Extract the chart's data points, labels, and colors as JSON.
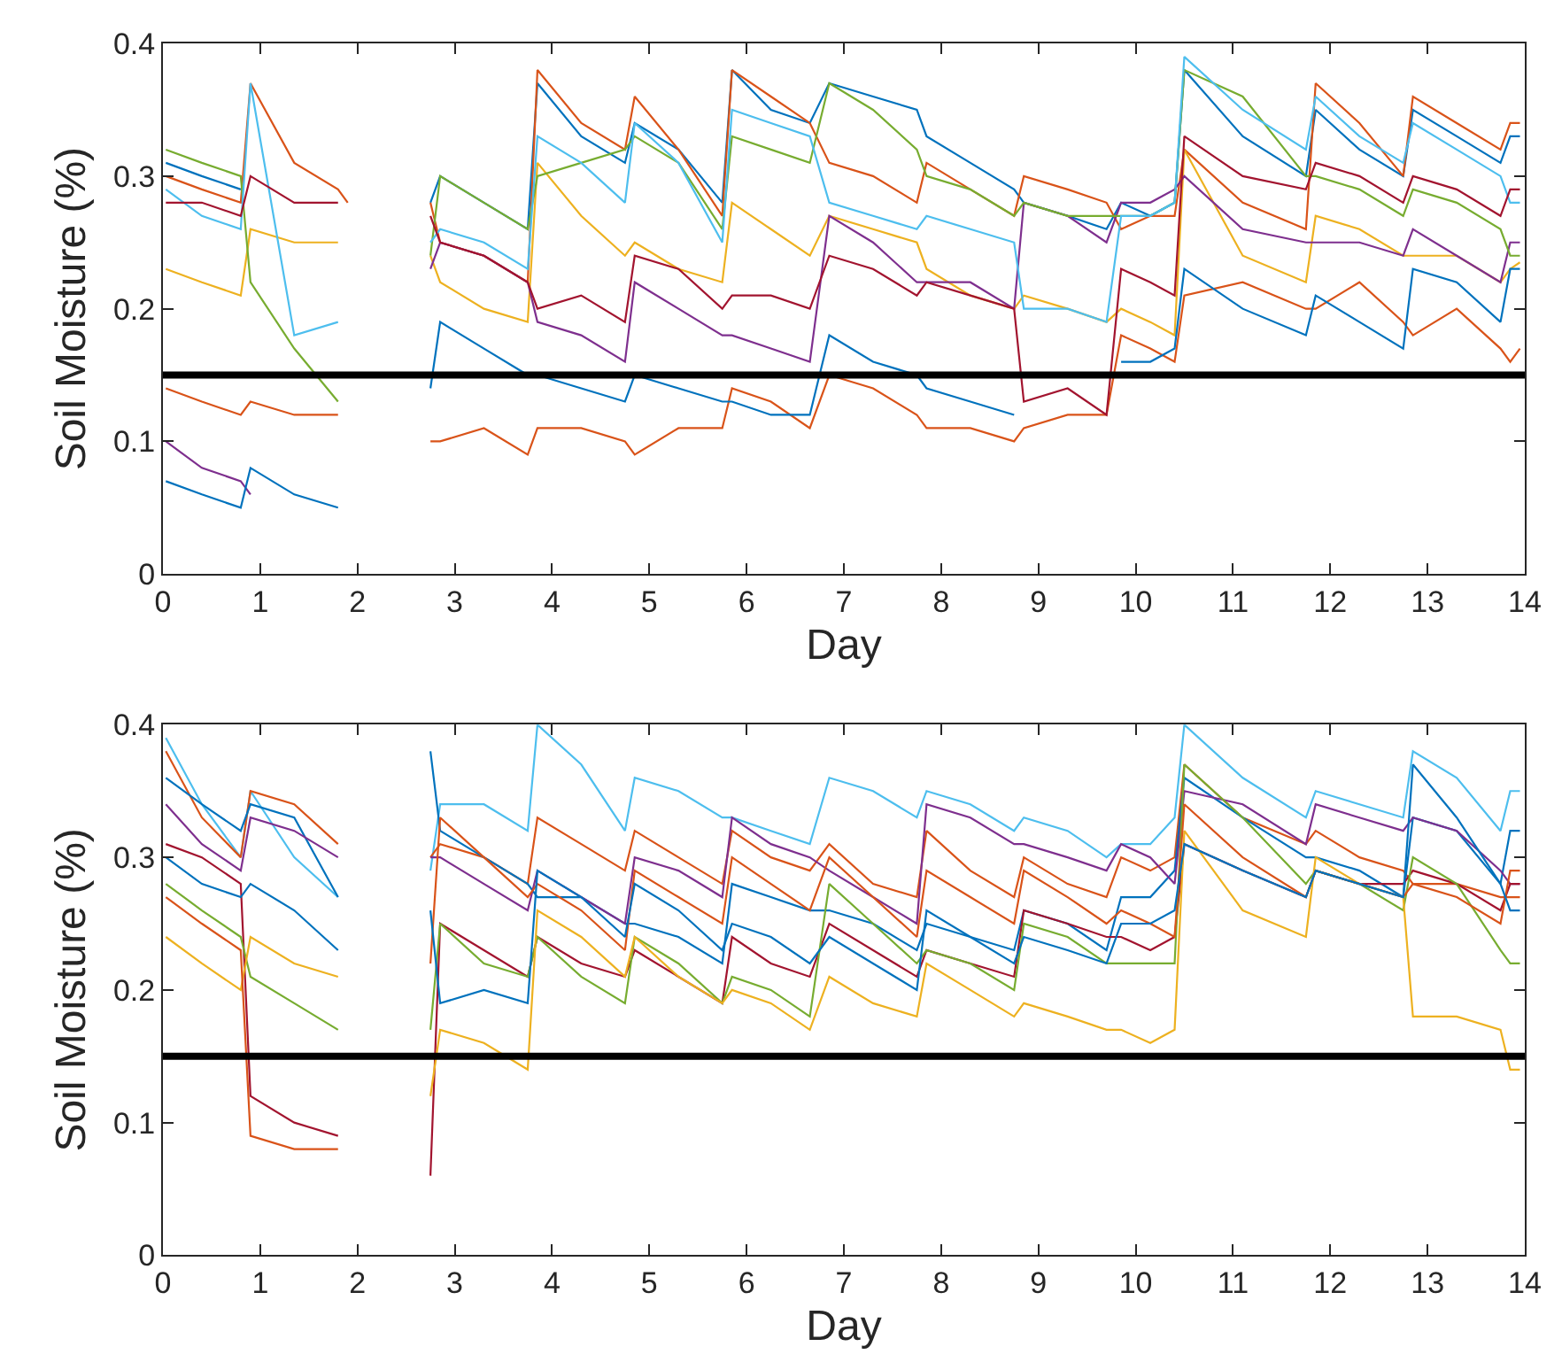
{
  "chart_data": [
    {
      "type": "line",
      "xlabel": "Day",
      "ylabel": "Soil Moisture (%)",
      "xlim": [
        0,
        14
      ],
      "xticks": [
        0,
        1,
        2,
        3,
        4,
        5,
        6,
        7,
        8,
        9,
        10,
        11,
        12,
        13,
        14
      ],
      "ylim": [
        0,
        0.4
      ],
      "yticks": [
        0,
        0.1,
        0.2,
        0.3,
        0.4
      ],
      "marker": "none",
      "line_style": "solid",
      "x": [
        0.03,
        0.4,
        0.8,
        0.9,
        1.35,
        1.8,
        1.9,
        2.3,
        2.75,
        2.85,
        3.3,
        3.75,
        3.85,
        4.3,
        4.75,
        4.85,
        5.3,
        5.75,
        5.85,
        6.25,
        6.65,
        6.85,
        7.3,
        7.75,
        7.85,
        8.3,
        8.75,
        8.85,
        9.3,
        9.7,
        9.85,
        10.15,
        10.4,
        10.5,
        11.1,
        11.75,
        11.85,
        12.3,
        12.75,
        12.85,
        13.3,
        13.75,
        13.85,
        13.95
      ],
      "ref_lines": [
        {
          "axis": "y",
          "value": 0.15,
          "color": "#000000"
        }
      ],
      "series": [
        {
          "color": "#0072bd",
          "values": [
            0.31,
            0.3,
            0.29,
            null,
            null,
            null,
            null,
            null,
            0.28,
            0.3,
            0.28,
            0.26,
            0.37,
            0.33,
            0.31,
            0.34,
            0.32,
            0.28,
            0.38,
            0.35,
            0.34,
            0.37,
            0.36,
            0.35,
            0.33,
            0.31,
            0.29,
            0.28,
            0.27,
            0.26,
            0.28,
            0.27,
            0.28,
            0.38,
            0.33,
            0.3,
            0.35,
            0.32,
            0.3,
            0.35,
            0.33,
            0.31,
            0.33,
            0.33
          ]
        },
        {
          "color": "#d95319",
          "values": [
            0.3,
            0.29,
            0.28,
            0.37,
            0.31,
            0.29,
            0.28,
            null,
            0.28,
            0.25,
            0.24,
            0.22,
            0.38,
            0.34,
            0.32,
            0.36,
            0.32,
            0.27,
            0.38,
            0.36,
            0.34,
            0.31,
            0.3,
            0.28,
            0.31,
            0.29,
            0.27,
            0.3,
            0.29,
            0.28,
            0.26,
            0.27,
            0.27,
            0.32,
            0.28,
            0.26,
            0.37,
            0.34,
            0.3,
            0.36,
            0.34,
            0.32,
            0.34,
            0.34
          ]
        },
        {
          "color": "#d95319",
          "values": [
            0.14,
            0.13,
            0.12,
            0.13,
            0.12,
            0.12,
            null,
            null,
            0.1,
            0.1,
            0.11,
            0.09,
            0.11,
            0.11,
            0.1,
            0.09,
            0.11,
            0.11,
            0.14,
            0.13,
            0.11,
            0.15,
            0.14,
            0.12,
            0.11,
            0.11,
            0.1,
            0.11,
            0.12,
            0.12,
            0.18,
            0.17,
            0.16,
            0.21,
            0.22,
            0.2,
            0.2,
            0.22,
            0.19,
            0.18,
            0.2,
            0.17,
            0.16,
            0.17
          ]
        },
        {
          "color": "#edb120",
          "values": [
            0.23,
            0.22,
            0.21,
            0.26,
            0.25,
            0.25,
            null,
            null,
            0.24,
            0.22,
            0.2,
            0.19,
            0.31,
            0.27,
            0.24,
            0.25,
            0.23,
            0.22,
            0.28,
            0.26,
            0.24,
            0.27,
            0.26,
            0.25,
            0.23,
            0.21,
            0.2,
            0.21,
            0.2,
            0.19,
            0.2,
            0.19,
            0.18,
            0.32,
            0.24,
            0.22,
            0.27,
            0.26,
            0.24,
            0.24,
            0.24,
            0.22,
            0.23,
            0.235
          ]
        },
        {
          "color": "#7e2f8e",
          "values": [
            0.1,
            0.08,
            0.07,
            0.06,
            null,
            null,
            null,
            null,
            0.23,
            0.25,
            0.24,
            0.22,
            0.19,
            0.18,
            0.16,
            0.22,
            0.2,
            0.18,
            0.18,
            0.17,
            0.16,
            0.27,
            0.25,
            0.22,
            0.22,
            0.22,
            0.2,
            0.28,
            0.27,
            0.25,
            0.28,
            0.28,
            0.29,
            0.3,
            0.26,
            0.25,
            0.25,
            0.25,
            0.24,
            0.26,
            0.24,
            0.22,
            0.25,
            0.25
          ]
        },
        {
          "color": "#77ac30",
          "values": [
            0.32,
            0.31,
            0.3,
            0.22,
            0.17,
            0.13,
            null,
            null,
            0.24,
            0.3,
            0.28,
            0.26,
            0.3,
            0.31,
            0.32,
            0.33,
            0.31,
            0.26,
            0.33,
            0.32,
            0.31,
            0.37,
            0.35,
            0.32,
            0.3,
            0.29,
            0.27,
            0.28,
            0.27,
            0.27,
            0.27,
            0.27,
            0.28,
            0.38,
            0.36,
            0.3,
            0.3,
            0.29,
            0.27,
            0.29,
            0.28,
            0.26,
            0.24,
            0.24
          ]
        },
        {
          "color": "#4dbeee",
          "values": [
            0.29,
            0.27,
            0.26,
            0.37,
            0.18,
            0.19,
            null,
            null,
            0.25,
            0.26,
            0.25,
            0.23,
            0.33,
            0.31,
            0.28,
            0.34,
            0.31,
            0.25,
            0.35,
            0.34,
            0.33,
            0.28,
            0.27,
            0.26,
            0.27,
            0.26,
            0.25,
            0.2,
            0.2,
            0.19,
            0.27,
            0.27,
            0.28,
            0.39,
            0.35,
            0.32,
            0.36,
            0.33,
            0.31,
            0.34,
            0.32,
            0.3,
            0.28,
            0.28
          ]
        },
        {
          "color": "#a2142f",
          "values": [
            0.28,
            0.28,
            0.27,
            0.3,
            0.28,
            0.28,
            null,
            null,
            0.27,
            0.25,
            0.24,
            0.22,
            0.2,
            0.21,
            0.19,
            0.24,
            0.23,
            0.2,
            0.21,
            0.21,
            0.2,
            0.24,
            0.23,
            0.21,
            0.22,
            0.21,
            0.2,
            0.13,
            0.14,
            0.12,
            0.23,
            0.22,
            0.21,
            0.33,
            0.3,
            0.29,
            0.31,
            0.3,
            0.28,
            0.3,
            0.29,
            0.27,
            0.29,
            0.29
          ]
        },
        {
          "color": "#0072bd",
          "values": [
            0.07,
            0.06,
            0.05,
            0.08,
            0.06,
            0.05,
            null,
            null,
            0.14,
            0.19,
            0.17,
            0.15,
            0.15,
            0.14,
            0.13,
            0.15,
            0.14,
            0.13,
            0.13,
            0.12,
            0.12,
            0.18,
            0.16,
            0.15,
            0.14,
            0.13,
            0.12,
            null,
            null,
            null,
            0.16,
            0.16,
            0.17,
            0.23,
            0.2,
            0.18,
            0.21,
            0.19,
            0.17,
            0.23,
            0.22,
            0.19,
            0.23,
            0.23
          ]
        }
      ]
    },
    {
      "type": "line",
      "xlabel": "Day",
      "ylabel": "Soil Moisture (%)",
      "xlim": [
        0,
        14
      ],
      "xticks": [
        0,
        1,
        2,
        3,
        4,
        5,
        6,
        7,
        8,
        9,
        10,
        11,
        12,
        13,
        14
      ],
      "ylim": [
        0,
        0.4
      ],
      "yticks": [
        0,
        0.1,
        0.2,
        0.3,
        0.4
      ],
      "marker": "none",
      "line_style": "solid",
      "x": [
        0.03,
        0.4,
        0.8,
        0.9,
        1.35,
        1.8,
        1.9,
        2.3,
        2.75,
        2.85,
        3.3,
        3.75,
        3.85,
        4.3,
        4.75,
        4.85,
        5.3,
        5.75,
        5.85,
        6.25,
        6.65,
        6.85,
        7.3,
        7.75,
        7.85,
        8.3,
        8.75,
        8.85,
        9.3,
        9.7,
        9.85,
        10.15,
        10.4,
        10.5,
        11.1,
        11.75,
        11.85,
        12.3,
        12.75,
        12.85,
        13.3,
        13.75,
        13.85,
        13.95
      ],
      "ref_lines": [
        {
          "axis": "y",
          "value": 0.15,
          "color": "#000000"
        }
      ],
      "series": [
        {
          "color": "#4dbeee",
          "values": [
            0.39,
            0.34,
            0.3,
            0.35,
            0.3,
            0.27,
            null,
            null,
            0.29,
            0.34,
            0.34,
            0.32,
            0.4,
            0.37,
            0.32,
            0.36,
            0.35,
            0.33,
            0.33,
            0.32,
            0.31,
            0.36,
            0.35,
            0.33,
            0.35,
            0.34,
            0.32,
            0.33,
            0.32,
            0.3,
            0.31,
            0.31,
            0.33,
            0.4,
            0.36,
            0.33,
            0.35,
            0.34,
            0.33,
            0.38,
            0.36,
            0.32,
            0.35,
            0.35
          ]
        },
        {
          "color": "#d95319",
          "values": [
            0.38,
            0.33,
            0.3,
            0.35,
            0.34,
            0.31,
            null,
            null,
            0.3,
            0.31,
            0.3,
            0.28,
            0.33,
            0.31,
            0.29,
            0.32,
            0.3,
            0.28,
            0.32,
            0.3,
            0.29,
            0.31,
            0.28,
            0.27,
            0.32,
            0.29,
            0.27,
            0.3,
            0.28,
            0.27,
            0.3,
            0.29,
            0.3,
            0.37,
            0.33,
            0.31,
            0.32,
            0.3,
            0.29,
            0.28,
            0.28,
            0.27,
            0.27,
            0.27
          ]
        },
        {
          "color": "#0072bd",
          "values": [
            0.36,
            0.34,
            0.32,
            0.34,
            0.33,
            0.27,
            null,
            null,
            0.38,
            0.32,
            0.3,
            0.28,
            0.27,
            0.27,
            0.25,
            0.25,
            0.24,
            0.22,
            0.28,
            0.27,
            0.26,
            0.26,
            0.25,
            0.23,
            0.25,
            0.24,
            0.23,
            0.26,
            0.25,
            0.23,
            0.27,
            0.27,
            0.29,
            0.36,
            0.33,
            0.3,
            0.3,
            0.29,
            0.27,
            0.33,
            0.32,
            0.28,
            0.32,
            0.32
          ]
        },
        {
          "color": "#7e2f8e",
          "values": [
            0.34,
            0.31,
            0.29,
            0.33,
            0.32,
            0.3,
            null,
            null,
            0.3,
            0.3,
            0.28,
            0.26,
            0.29,
            0.27,
            0.25,
            0.3,
            0.29,
            0.27,
            0.33,
            0.31,
            0.3,
            0.29,
            0.27,
            0.25,
            0.34,
            0.33,
            0.31,
            0.31,
            0.3,
            0.29,
            0.31,
            0.3,
            0.28,
            0.35,
            0.34,
            0.31,
            0.34,
            0.33,
            0.32,
            0.33,
            0.32,
            0.29,
            0.28,
            0.28
          ]
        },
        {
          "color": "#a2142f",
          "values": [
            0.31,
            0.3,
            0.28,
            0.12,
            0.1,
            0.09,
            null,
            null,
            0.06,
            0.25,
            0.23,
            0.21,
            0.24,
            0.22,
            0.21,
            0.23,
            0.21,
            0.19,
            0.24,
            0.22,
            0.21,
            0.25,
            0.23,
            0.21,
            0.23,
            0.22,
            0.21,
            0.26,
            0.25,
            0.24,
            0.24,
            0.23,
            0.24,
            0.31,
            0.29,
            0.27,
            0.29,
            0.28,
            0.28,
            0.29,
            0.28,
            0.26,
            0.28,
            0.28
          ]
        },
        {
          "color": "#77ac30",
          "values": [
            0.28,
            0.26,
            0.24,
            0.21,
            0.19,
            0.17,
            null,
            null,
            0.17,
            0.25,
            0.22,
            0.21,
            0.24,
            0.21,
            0.19,
            0.24,
            0.22,
            0.19,
            0.21,
            0.2,
            0.18,
            0.28,
            0.25,
            0.22,
            0.23,
            0.22,
            0.2,
            0.25,
            0.24,
            0.22,
            0.22,
            0.22,
            0.22,
            0.37,
            0.33,
            0.28,
            0.29,
            0.28,
            0.26,
            0.3,
            0.28,
            0.23,
            0.22,
            0.22
          ]
        },
        {
          "color": "#edb120",
          "values": [
            0.24,
            0.22,
            0.2,
            0.24,
            0.22,
            0.21,
            null,
            null,
            0.12,
            0.17,
            0.16,
            0.14,
            0.26,
            0.24,
            0.21,
            0.24,
            0.21,
            0.19,
            0.2,
            0.19,
            0.17,
            0.21,
            0.19,
            0.18,
            0.22,
            0.2,
            0.18,
            0.19,
            0.18,
            0.17,
            0.17,
            0.16,
            0.17,
            0.32,
            0.26,
            0.24,
            0.3,
            0.28,
            0.27,
            0.18,
            0.18,
            0.17,
            0.14,
            0.14
          ]
        },
        {
          "color": "#d95319",
          "values": [
            0.27,
            0.25,
            0.23,
            0.09,
            0.08,
            0.08,
            null,
            null,
            0.22,
            0.33,
            0.3,
            0.27,
            0.28,
            0.26,
            0.23,
            0.29,
            0.27,
            0.25,
            0.3,
            0.28,
            0.26,
            0.3,
            0.27,
            0.24,
            0.29,
            0.27,
            0.25,
            0.29,
            0.27,
            0.25,
            0.26,
            0.25,
            0.24,
            0.34,
            0.3,
            0.27,
            0.29,
            0.28,
            0.27,
            0.28,
            0.27,
            0.25,
            0.29,
            0.29
          ]
        },
        {
          "color": "#0072bd",
          "values": [
            0.3,
            0.28,
            0.27,
            0.28,
            0.26,
            0.23,
            null,
            null,
            0.26,
            0.19,
            0.2,
            0.19,
            0.29,
            0.27,
            0.24,
            0.28,
            0.26,
            0.23,
            0.25,
            0.24,
            0.22,
            0.24,
            0.22,
            0.2,
            0.26,
            0.24,
            0.22,
            0.24,
            0.23,
            0.22,
            0.25,
            0.25,
            0.26,
            0.31,
            0.29,
            0.27,
            0.29,
            0.28,
            0.27,
            0.37,
            0.33,
            0.28,
            0.26,
            0.26
          ]
        }
      ]
    }
  ]
}
